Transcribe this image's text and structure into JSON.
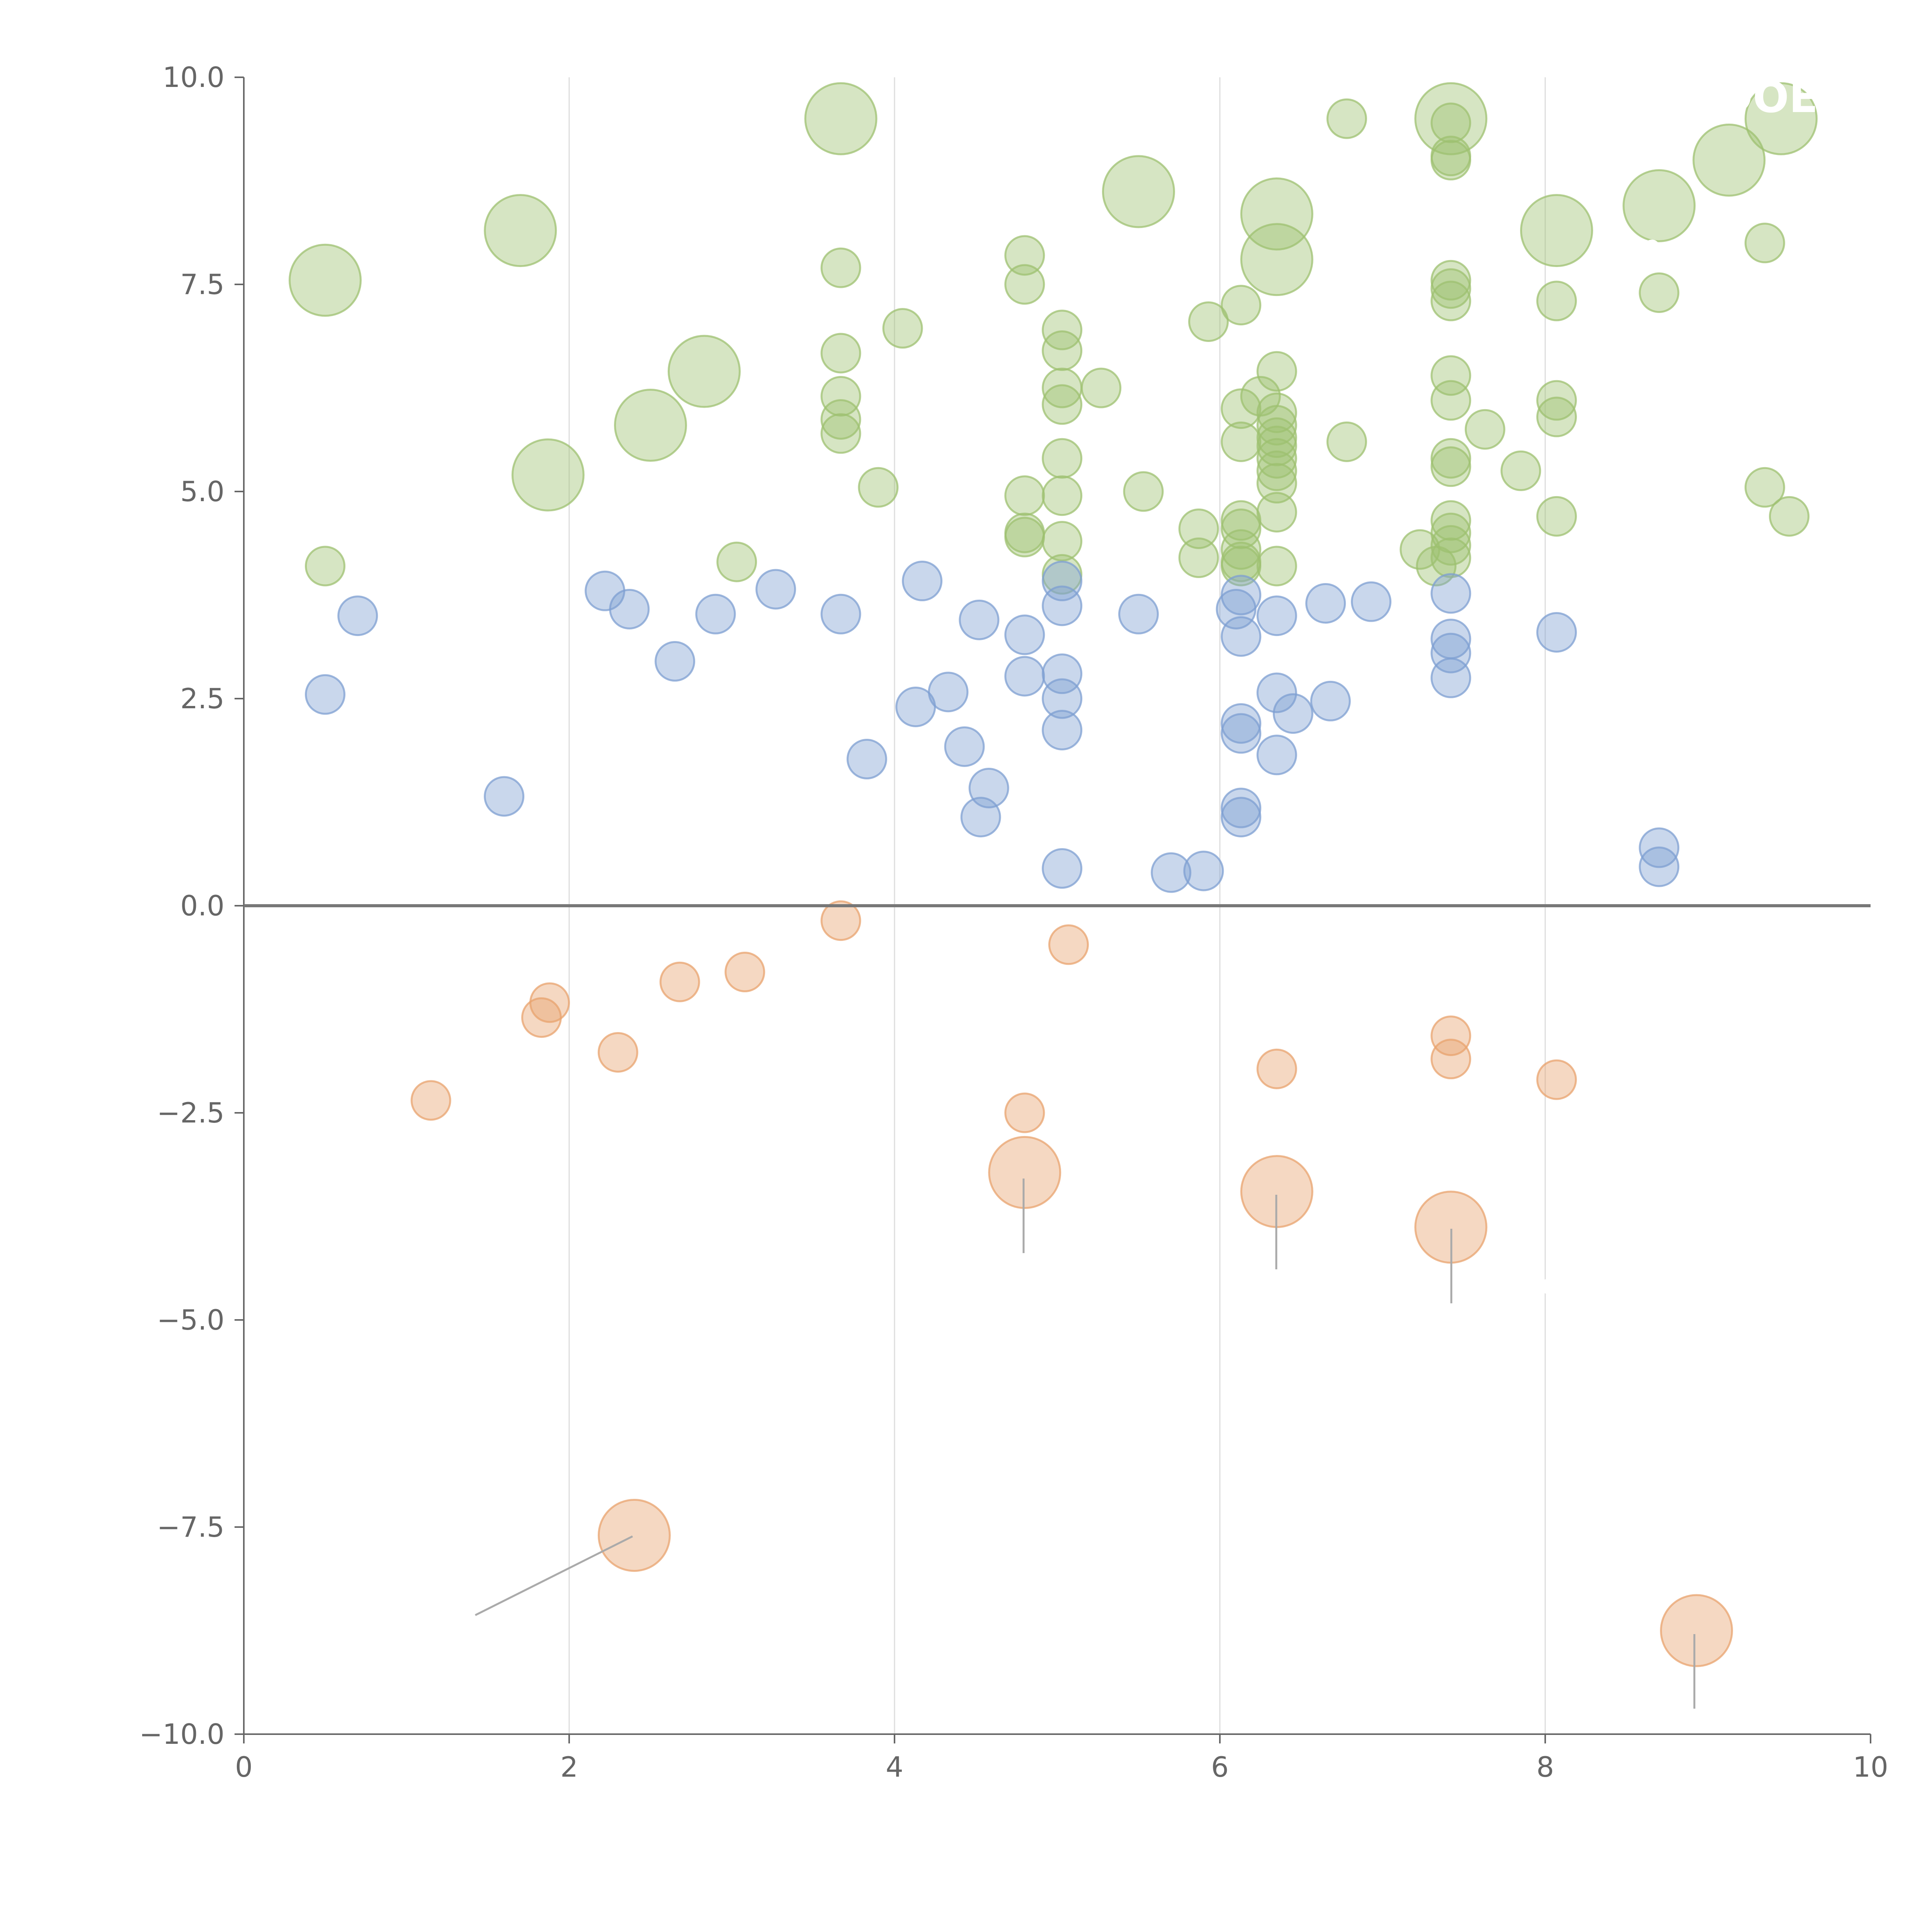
{
  "chart_data": {
    "type": "scatter",
    "title": "",
    "xlabel": "",
    "ylabel": "",
    "xlim": [
      0,
      10
    ],
    "ylim": [
      -10,
      10
    ],
    "grid": "vertical",
    "x_ticks": [
      "0",
      "2",
      "4",
      "6",
      "8",
      "10"
    ],
    "y_ticks": [
      "10.0",
      "7.5",
      "5.0",
      "2.5",
      "0.0",
      "−2.5",
      "−5.0",
      "−7.5",
      "−10.0"
    ],
    "series": [
      {
        "name": "green",
        "color": "#9dc070",
        "points": [
          [
            0.5,
            7.55,
            3
          ],
          [
            1.7,
            8.15,
            3
          ],
          [
            1.87,
            5.2,
            3
          ],
          [
            2.5,
            5.8,
            3
          ],
          [
            2.83,
            6.45,
            3
          ],
          [
            3.67,
            9.5,
            3
          ],
          [
            5.5,
            8.62,
            3
          ],
          [
            6.35,
            8.35,
            3
          ],
          [
            6.35,
            7.8,
            3
          ],
          [
            7.42,
            9.5,
            3
          ],
          [
            8.07,
            8.15,
            3
          ],
          [
            8.7,
            8.45,
            3
          ],
          [
            9.13,
            9.0,
            3
          ],
          [
            9.45,
            9.5,
            3
          ],
          [
            0.5,
            4.1,
            1
          ],
          [
            3.03,
            4.15,
            1
          ],
          [
            3.67,
            7.7,
            1
          ],
          [
            3.67,
            6.67,
            1
          ],
          [
            3.67,
            6.15,
            1
          ],
          [
            3.67,
            5.87,
            1
          ],
          [
            3.67,
            5.7,
            1
          ],
          [
            3.9,
            5.05,
            1
          ],
          [
            4.05,
            6.97,
            1
          ],
          [
            4.8,
            7.85,
            1
          ],
          [
            4.8,
            7.5,
            1
          ],
          [
            4.8,
            4.95,
            1
          ],
          [
            4.8,
            4.5,
            1
          ],
          [
            4.8,
            4.45,
            1
          ],
          [
            5.03,
            6.95,
            1
          ],
          [
            5.03,
            6.7,
            1
          ],
          [
            5.03,
            6.25,
            1
          ],
          [
            5.03,
            6.05,
            1
          ],
          [
            5.03,
            5.4,
            1
          ],
          [
            5.03,
            4.95,
            1
          ],
          [
            5.03,
            4.4,
            1
          ],
          [
            5.03,
            4.0,
            1
          ],
          [
            5.27,
            6.25,
            1
          ],
          [
            5.53,
            5.0,
            1
          ],
          [
            5.87,
            4.55,
            1
          ],
          [
            5.87,
            4.2,
            1
          ],
          [
            5.93,
            7.05,
            1
          ],
          [
            6.13,
            7.25,
            1
          ],
          [
            6.13,
            6.0,
            1
          ],
          [
            6.13,
            5.6,
            1
          ],
          [
            6.13,
            4.65,
            1
          ],
          [
            6.13,
            4.55,
            1
          ],
          [
            6.13,
            4.3,
            1
          ],
          [
            6.13,
            4.15,
            1
          ],
          [
            6.13,
            4.1,
            1
          ],
          [
            6.25,
            6.15,
            1
          ],
          [
            6.35,
            6.45,
            1
          ],
          [
            6.35,
            5.95,
            1
          ],
          [
            6.35,
            5.8,
            1
          ],
          [
            6.35,
            5.65,
            1
          ],
          [
            6.35,
            5.55,
            1
          ],
          [
            6.35,
            5.4,
            1
          ],
          [
            6.35,
            5.25,
            1
          ],
          [
            6.35,
            5.1,
            1
          ],
          [
            6.35,
            4.75,
            1
          ],
          [
            6.35,
            4.1,
            1
          ],
          [
            6.78,
            9.5,
            1
          ],
          [
            6.78,
            5.6,
            1
          ],
          [
            7.23,
            4.3,
            1
          ],
          [
            7.33,
            4.1,
            1
          ],
          [
            7.42,
            9.45,
            1
          ],
          [
            7.42,
            9.05,
            1
          ],
          [
            7.42,
            9.0,
            1
          ],
          [
            7.42,
            7.55,
            1
          ],
          [
            7.42,
            7.45,
            1
          ],
          [
            7.42,
            7.3,
            1
          ],
          [
            7.42,
            6.4,
            1
          ],
          [
            7.42,
            6.1,
            1
          ],
          [
            7.42,
            5.4,
            1
          ],
          [
            7.42,
            5.3,
            1
          ],
          [
            7.42,
            4.65,
            1
          ],
          [
            7.42,
            4.5,
            1
          ],
          [
            7.42,
            4.35,
            1
          ],
          [
            7.42,
            4.2,
            1
          ],
          [
            7.63,
            5.75,
            1
          ],
          [
            7.85,
            5.25,
            1
          ],
          [
            8.07,
            7.3,
            1
          ],
          [
            8.07,
            6.1,
            1
          ],
          [
            8.07,
            5.9,
            1
          ],
          [
            8.07,
            4.7,
            1
          ],
          [
            8.7,
            7.4,
            1
          ],
          [
            9.35,
            8.0,
            1
          ],
          [
            9.35,
            5.05,
            1
          ],
          [
            9.5,
            4.7,
            1
          ]
        ]
      },
      {
        "name": "blue",
        "color": "#7e9fd2",
        "points": [
          [
            0.5,
            2.55,
            1
          ],
          [
            0.7,
            3.5,
            1
          ],
          [
            1.6,
            1.32,
            1
          ],
          [
            2.22,
            3.8,
            1
          ],
          [
            2.37,
            3.58,
            1
          ],
          [
            2.65,
            2.95,
            1
          ],
          [
            2.9,
            3.52,
            1
          ],
          [
            3.27,
            3.82,
            1
          ],
          [
            3.67,
            3.52,
            1
          ],
          [
            3.83,
            1.77,
            1
          ],
          [
            4.13,
            2.4,
            1
          ],
          [
            4.17,
            3.92,
            1
          ],
          [
            4.33,
            2.58,
            1
          ],
          [
            4.43,
            1.92,
            1
          ],
          [
            4.52,
            3.45,
            1
          ],
          [
            4.53,
            1.07,
            1
          ],
          [
            4.58,
            1.42,
            1
          ],
          [
            4.8,
            3.27,
            1
          ],
          [
            4.8,
            2.77,
            1
          ],
          [
            5.03,
            3.92,
            1
          ],
          [
            5.03,
            3.62,
            1
          ],
          [
            5.03,
            2.8,
            1
          ],
          [
            5.03,
            2.5,
            1
          ],
          [
            5.03,
            2.12,
            1
          ],
          [
            5.03,
            0.45,
            1
          ],
          [
            5.5,
            3.52,
            1
          ],
          [
            5.7,
            0.4,
            1
          ],
          [
            5.9,
            0.42,
            1
          ],
          [
            6.1,
            3.58,
            1
          ],
          [
            6.13,
            3.75,
            1
          ],
          [
            6.13,
            3.25,
            1
          ],
          [
            6.13,
            2.2,
            1
          ],
          [
            6.13,
            2.08,
            1
          ],
          [
            6.13,
            1.18,
            1
          ],
          [
            6.13,
            1.07,
            1
          ],
          [
            6.35,
            3.5,
            1
          ],
          [
            6.35,
            2.57,
            1
          ],
          [
            6.35,
            1.82,
            1
          ],
          [
            6.45,
            2.32,
            1
          ],
          [
            6.65,
            3.65,
            1
          ],
          [
            6.68,
            2.47,
            1
          ],
          [
            6.93,
            3.67,
            1
          ],
          [
            7.42,
            3.77,
            1
          ],
          [
            7.42,
            3.22,
            1
          ],
          [
            7.42,
            3.05,
            1
          ],
          [
            7.42,
            2.75,
            1
          ],
          [
            8.07,
            3.3,
            1
          ],
          [
            8.7,
            0.7,
            1
          ],
          [
            8.7,
            0.47,
            1
          ]
        ]
      },
      {
        "name": "orange",
        "color": "#e8a36e",
        "points": [
          [
            1.15,
            -2.35,
            1
          ],
          [
            1.83,
            -1.35,
            1
          ],
          [
            1.88,
            -1.17,
            1
          ],
          [
            2.3,
            -1.77,
            1
          ],
          [
            2.68,
            -0.92,
            1
          ],
          [
            3.08,
            -0.8,
            1
          ],
          [
            3.67,
            -0.18,
            1
          ],
          [
            5.07,
            -0.47,
            1
          ],
          [
            4.8,
            -2.5,
            1
          ],
          [
            6.35,
            -1.97,
            1
          ],
          [
            7.42,
            -1.57,
            1
          ],
          [
            7.42,
            -1.85,
            1
          ],
          [
            8.07,
            -2.1,
            1
          ],
          [
            4.8,
            -3.22,
            3
          ],
          [
            6.35,
            -3.45,
            3
          ],
          [
            7.42,
            -3.88,
            3
          ],
          [
            2.4,
            -7.6,
            3
          ],
          [
            8.93,
            -8.75,
            3
          ]
        ]
      }
    ],
    "annotations": [
      "DOE",
      "•••",
      "•"
    ]
  }
}
